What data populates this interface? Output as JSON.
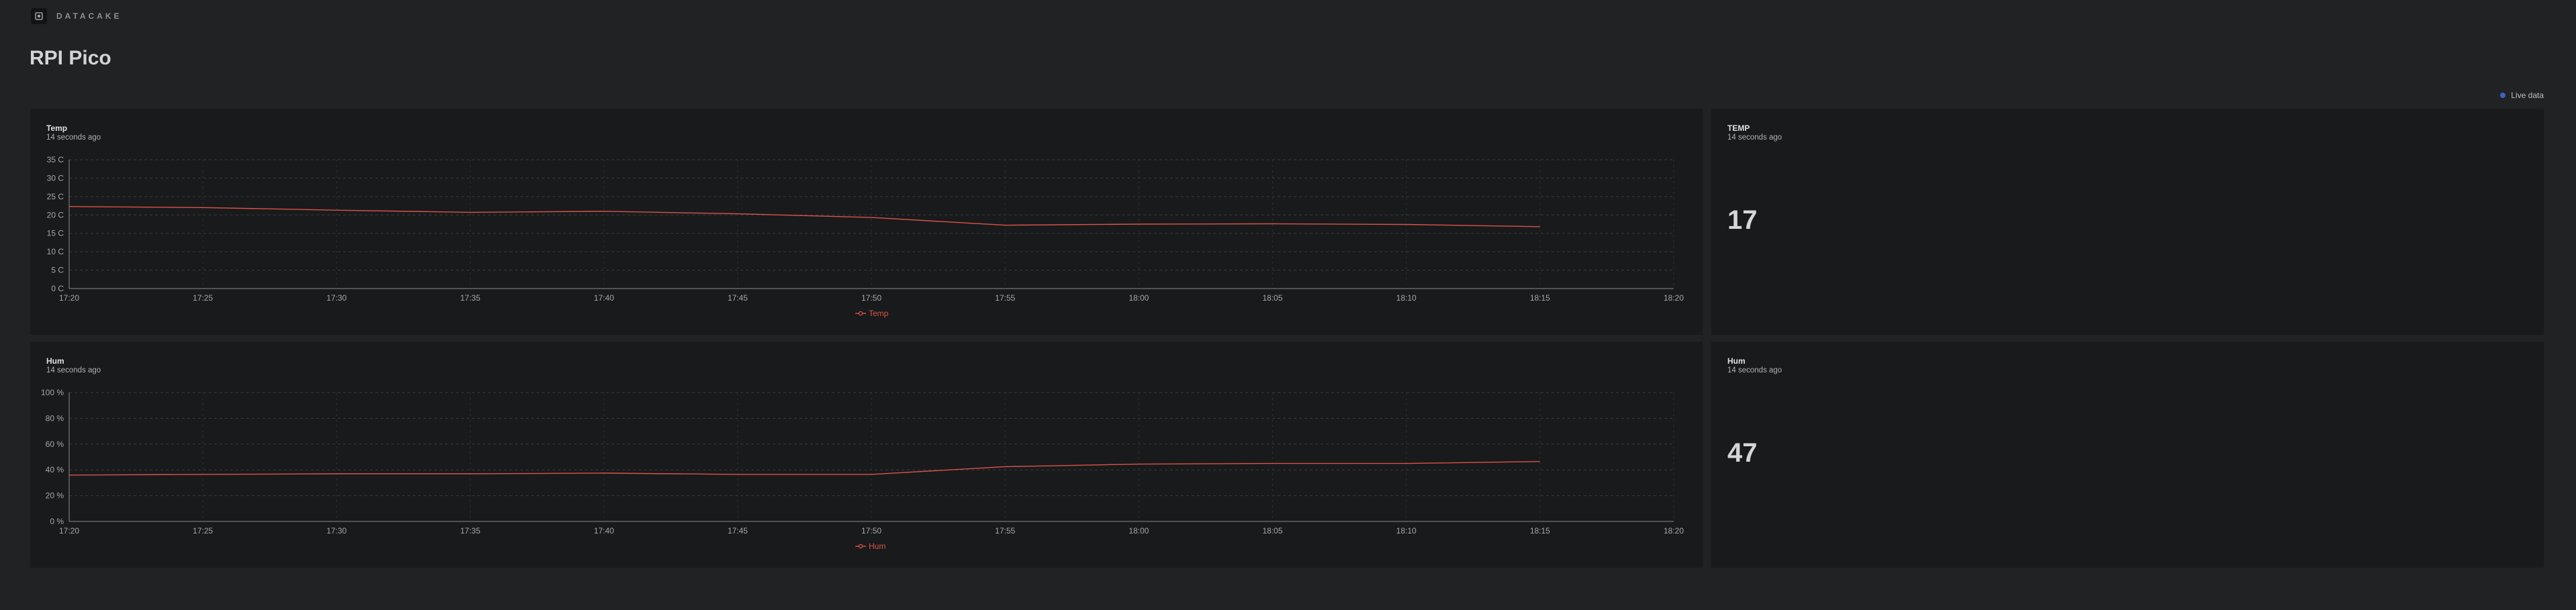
{
  "app": {
    "brand": "DATACAKE",
    "page_title": "RPI Pico",
    "live_label": "Live data"
  },
  "colors": {
    "series": "#d9544a",
    "live_dot": "#3a63c7",
    "background": "#212224",
    "card": "#191a1b"
  },
  "icons": {
    "logo": "datacake-logo-icon",
    "live": "live-dot-icon"
  },
  "widgets": {
    "temp_chart": {
      "title": "Temp",
      "subtitle": "14 seconds ago"
    },
    "temp_value": {
      "title": "TEMP",
      "subtitle": "14 seconds ago",
      "value": "17"
    },
    "hum_chart": {
      "title": "Hum",
      "subtitle": "14 seconds ago"
    },
    "hum_value": {
      "title": "Hum",
      "subtitle": "14 seconds ago",
      "value": "47"
    }
  },
  "chart_data": [
    {
      "type": "line",
      "title": "Temp",
      "x_ticks": [
        "17:20",
        "17:25",
        "17:30",
        "17:35",
        "17:40",
        "17:45",
        "17:50",
        "17:55",
        "18:00",
        "18:05",
        "18:10",
        "18:15",
        "18:20"
      ],
      "y_ticks": [
        "0 C",
        "5 C",
        "10 C",
        "15 C",
        "20 C",
        "25 C",
        "30 C",
        "35 C"
      ],
      "ylim": [
        0,
        35
      ],
      "xlim_minutes_after_1720": [
        0,
        60
      ],
      "grid": true,
      "legend_position": "bottom-center",
      "series": [
        {
          "name": "Temp",
          "x": [
            "17:20",
            "17:25",
            "17:30",
            "17:35",
            "17:40",
            "17:45",
            "17:50",
            "17:55",
            "18:00",
            "18:05",
            "18:10",
            "18:15"
          ],
          "y": [
            22.3,
            22.0,
            21.3,
            20.7,
            21.0,
            20.3,
            19.3,
            17.2,
            17.5,
            17.6,
            17.4,
            16.8
          ]
        }
      ]
    },
    {
      "type": "line",
      "title": "Hum",
      "x_ticks": [
        "17:20",
        "17:25",
        "17:30",
        "17:35",
        "17:40",
        "17:45",
        "17:50",
        "17:55",
        "18:00",
        "18:05",
        "18:10",
        "18:15",
        "18:20"
      ],
      "y_ticks": [
        "0 %",
        "20 %",
        "40 %",
        "60 %",
        "80 %",
        "100 %"
      ],
      "ylim": [
        0,
        100
      ],
      "grid": true,
      "legend_position": "bottom-center",
      "series": [
        {
          "name": "Hum",
          "x": [
            "17:20",
            "17:25",
            "17:30",
            "17:35",
            "17:40",
            "17:45",
            "17:50",
            "17:55",
            "18:00",
            "18:05",
            "18:10",
            "18:15"
          ],
          "y": [
            36.0,
            36.5,
            37.0,
            37.0,
            37.5,
            36.5,
            36.5,
            42.5,
            44.5,
            45.0,
            45.0,
            46.5
          ]
        }
      ]
    }
  ]
}
